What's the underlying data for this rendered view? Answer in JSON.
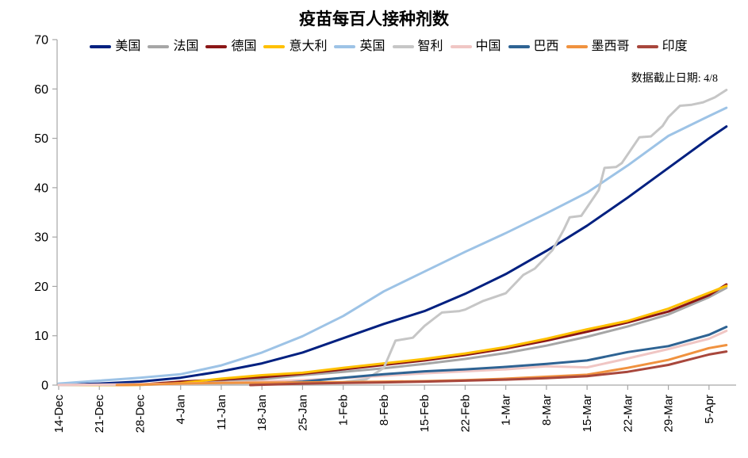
{
  "title": "疫苗每百人接种剂数",
  "annotation": "数据截止日期: 4/8",
  "colors": {
    "background": "#ffffff",
    "axis": "#a6a6a6",
    "text": "#000000"
  },
  "chart_data": {
    "type": "line",
    "title": "疫苗每百人接种剂数",
    "xlabel": "",
    "ylabel": "",
    "ylim": [
      0,
      70
    ],
    "yticks": [
      0,
      10,
      20,
      30,
      40,
      50,
      60,
      70
    ],
    "grid": false,
    "legend_position": "top",
    "x_unit": "days-since-14-Dec",
    "x_tick_days": [
      0,
      7,
      14,
      21,
      28,
      35,
      42,
      49,
      56,
      63,
      70,
      77,
      84,
      91,
      98,
      105,
      112
    ],
    "x_tick_labels": [
      "14-Dec",
      "21-Dec",
      "28-Dec",
      "4-Jan",
      "11-Jan",
      "18-Jan",
      "25-Jan",
      "1-Feb",
      "8-Feb",
      "15-Feb",
      "22-Feb",
      "1-Mar",
      "8-Mar",
      "15-Mar",
      "22-Mar",
      "29-Mar",
      "5-Apr"
    ],
    "x_range_days": [
      0,
      115
    ],
    "data_cutoff_label": "4/8",
    "series": [
      {
        "name": "美国",
        "color": "#002080",
        "points": [
          [
            0,
            0.05
          ],
          [
            7,
            0.3
          ],
          [
            14,
            0.7
          ],
          [
            21,
            1.5
          ],
          [
            28,
            2.8
          ],
          [
            35,
            4.4
          ],
          [
            42,
            6.6
          ],
          [
            49,
            9.5
          ],
          [
            56,
            12.4
          ],
          [
            63,
            15.0
          ],
          [
            70,
            18.5
          ],
          [
            77,
            22.5
          ],
          [
            84,
            27.2
          ],
          [
            91,
            32.3
          ],
          [
            98,
            38.0
          ],
          [
            105,
            44.0
          ],
          [
            112,
            50.0
          ],
          [
            115,
            52.4
          ]
        ]
      },
      {
        "name": "法国",
        "color": "#a6a6a6",
        "points": [
          [
            0,
            0
          ],
          [
            7,
            0
          ],
          [
            14,
            0.05
          ],
          [
            21,
            0.3
          ],
          [
            28,
            0.7
          ],
          [
            35,
            1.2
          ],
          [
            42,
            2.0
          ],
          [
            49,
            2.7
          ],
          [
            56,
            3.4
          ],
          [
            63,
            4.3
          ],
          [
            70,
            5.3
          ],
          [
            77,
            6.5
          ],
          [
            84,
            8.0
          ],
          [
            91,
            9.8
          ],
          [
            98,
            11.9
          ],
          [
            105,
            14.3
          ],
          [
            112,
            17.8
          ],
          [
            115,
            19.7
          ]
        ]
      },
      {
        "name": "德国",
        "color": "#8b1717",
        "points": [
          [
            0,
            0
          ],
          [
            7,
            0
          ],
          [
            14,
            0.1
          ],
          [
            21,
            0.7
          ],
          [
            28,
            1.1
          ],
          [
            35,
            1.6
          ],
          [
            42,
            2.3
          ],
          [
            49,
            3.2
          ],
          [
            56,
            4.1
          ],
          [
            63,
            5.0
          ],
          [
            70,
            6.1
          ],
          [
            77,
            7.4
          ],
          [
            84,
            9.0
          ],
          [
            91,
            10.8
          ],
          [
            98,
            12.7
          ],
          [
            105,
            14.9
          ],
          [
            112,
            18.2
          ],
          [
            115,
            20.4
          ]
        ]
      },
      {
        "name": "意大利",
        "color": "#ffc000",
        "points": [
          [
            0,
            0
          ],
          [
            7,
            0
          ],
          [
            14,
            0.05
          ],
          [
            21,
            0.4
          ],
          [
            28,
            1.3
          ],
          [
            35,
            2.0
          ],
          [
            42,
            2.5
          ],
          [
            49,
            3.5
          ],
          [
            56,
            4.4
          ],
          [
            63,
            5.3
          ],
          [
            70,
            6.4
          ],
          [
            77,
            7.7
          ],
          [
            84,
            9.4
          ],
          [
            91,
            11.3
          ],
          [
            98,
            13.0
          ],
          [
            105,
            15.5
          ],
          [
            112,
            18.7
          ],
          [
            115,
            20.1
          ]
        ]
      },
      {
        "name": "英国",
        "color": "#9dc3e6",
        "points": [
          [
            0,
            0.3
          ],
          [
            7,
            0.9
          ],
          [
            14,
            1.5
          ],
          [
            21,
            2.2
          ],
          [
            28,
            4.0
          ],
          [
            35,
            6.6
          ],
          [
            42,
            9.9
          ],
          [
            49,
            14.0
          ],
          [
            56,
            19.0
          ],
          [
            63,
            23.0
          ],
          [
            70,
            27.0
          ],
          [
            77,
            30.8
          ],
          [
            84,
            34.8
          ],
          [
            91,
            39.0
          ],
          [
            98,
            44.5
          ],
          [
            105,
            50.5
          ],
          [
            112,
            54.5
          ],
          [
            115,
            56.2
          ]
        ]
      },
      {
        "name": "智利",
        "color": "#c6c6c6",
        "points": [
          [
            0,
            0
          ],
          [
            14,
            0.1
          ],
          [
            28,
            0.3
          ],
          [
            42,
            0.5
          ],
          [
            49,
            0.6
          ],
          [
            53,
            1.2
          ],
          [
            56,
            3.5
          ],
          [
            58,
            9.0
          ],
          [
            61,
            9.6
          ],
          [
            63,
            12.0
          ],
          [
            65,
            13.8
          ],
          [
            66,
            14.7
          ],
          [
            69,
            15.0
          ],
          [
            70,
            15.3
          ],
          [
            73,
            17.0
          ],
          [
            77,
            18.6
          ],
          [
            80,
            22.3
          ],
          [
            82,
            23.6
          ],
          [
            85,
            27.3
          ],
          [
            87,
            31.5
          ],
          [
            88,
            34.0
          ],
          [
            90,
            34.3
          ],
          [
            93,
            39.5
          ],
          [
            94,
            44.0
          ],
          [
            96,
            44.2
          ],
          [
            97,
            45.0
          ],
          [
            100,
            50.2
          ],
          [
            102,
            50.4
          ],
          [
            104,
            52.5
          ],
          [
            105,
            54.3
          ],
          [
            107,
            56.6
          ],
          [
            109,
            56.8
          ],
          [
            111,
            57.3
          ],
          [
            113,
            58.3
          ],
          [
            115,
            59.8
          ]
        ]
      },
      {
        "name": "中国",
        "color": "#f0c6c4",
        "points": [
          [
            0,
            0.05
          ],
          [
            7,
            0.1
          ],
          [
            14,
            0.2
          ],
          [
            21,
            0.3
          ],
          [
            28,
            0.5
          ],
          [
            35,
            0.7
          ],
          [
            42,
            1.0
          ],
          [
            49,
            1.4
          ],
          [
            56,
            1.9
          ],
          [
            63,
            2.4
          ],
          [
            70,
            2.8
          ],
          [
            77,
            3.2
          ],
          [
            84,
            3.8
          ],
          [
            91,
            3.6
          ],
          [
            98,
            5.4
          ],
          [
            105,
            7.3
          ],
          [
            112,
            9.4
          ],
          [
            115,
            11.0
          ]
        ]
      },
      {
        "name": "巴西",
        "color": "#2e6393",
        "points": [
          [
            33,
            0
          ],
          [
            35,
            0.2
          ],
          [
            42,
            0.7
          ],
          [
            49,
            1.5
          ],
          [
            56,
            2.2
          ],
          [
            63,
            2.8
          ],
          [
            70,
            3.2
          ],
          [
            77,
            3.7
          ],
          [
            84,
            4.3
          ],
          [
            91,
            5.0
          ],
          [
            98,
            6.7
          ],
          [
            105,
            7.9
          ],
          [
            112,
            10.2
          ],
          [
            115,
            11.8
          ]
        ]
      },
      {
        "name": "墨西哥",
        "color": "#f0923f",
        "points": [
          [
            10,
            0
          ],
          [
            14,
            0.1
          ],
          [
            21,
            0.3
          ],
          [
            28,
            0.45
          ],
          [
            35,
            0.5
          ],
          [
            42,
            0.55
          ],
          [
            49,
            0.6
          ],
          [
            56,
            0.7
          ],
          [
            63,
            0.8
          ],
          [
            70,
            1.0
          ],
          [
            77,
            1.3
          ],
          [
            84,
            1.7
          ],
          [
            91,
            2.1
          ],
          [
            98,
            3.5
          ],
          [
            105,
            5.1
          ],
          [
            112,
            7.5
          ],
          [
            115,
            8.1
          ]
        ]
      },
      {
        "name": "印度",
        "color": "#a8473c",
        "points": [
          [
            33,
            0
          ],
          [
            42,
            0.3
          ],
          [
            49,
            0.45
          ],
          [
            56,
            0.55
          ],
          [
            63,
            0.7
          ],
          [
            70,
            0.9
          ],
          [
            77,
            1.1
          ],
          [
            84,
            1.4
          ],
          [
            91,
            1.8
          ],
          [
            98,
            2.7
          ],
          [
            105,
            4.1
          ],
          [
            112,
            6.2
          ],
          [
            115,
            6.8
          ]
        ]
      }
    ]
  }
}
